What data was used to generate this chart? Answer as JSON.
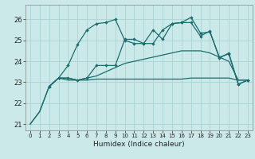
{
  "xlabel": "Humidex (Indice chaleur)",
  "xlim": [
    -0.5,
    23.5
  ],
  "ylim": [
    20.7,
    26.7
  ],
  "yticks": [
    21,
    22,
    23,
    24,
    25,
    26
  ],
  "xticks": [
    0,
    1,
    2,
    3,
    4,
    5,
    6,
    7,
    8,
    9,
    10,
    11,
    12,
    13,
    14,
    15,
    16,
    17,
    18,
    19,
    20,
    21,
    22,
    23
  ],
  "bg_color": "#cce9e9",
  "grid_color": "#aad4d4",
  "line_color": "#1a6e6e",
  "line1": {
    "x": [
      0,
      1,
      2,
      3,
      4,
      5,
      6,
      7,
      8,
      9,
      10,
      11,
      12,
      13,
      14,
      15,
      16,
      17,
      18,
      19,
      20,
      21,
      22,
      23
    ],
    "y": [
      21.0,
      21.6,
      22.8,
      23.2,
      23.2,
      23.1,
      23.1,
      23.15,
      23.15,
      23.15,
      23.15,
      23.15,
      23.15,
      23.15,
      23.15,
      23.15,
      23.15,
      23.2,
      23.2,
      23.2,
      23.2,
      23.2,
      23.1,
      23.1
    ]
  },
  "line2": {
    "x": [
      0,
      1,
      2,
      3,
      4,
      5,
      6,
      7,
      8,
      9,
      10,
      11,
      12,
      13,
      14,
      15,
      16,
      17,
      18,
      19,
      20,
      21,
      22,
      23
    ],
    "y": [
      21.0,
      21.6,
      22.8,
      23.2,
      23.1,
      23.1,
      23.2,
      23.3,
      23.5,
      23.7,
      23.9,
      24.0,
      24.1,
      24.2,
      24.3,
      24.4,
      24.5,
      24.5,
      24.5,
      24.4,
      24.2,
      24.0,
      23.1,
      23.1
    ]
  },
  "line3": {
    "x": [
      2,
      3,
      4,
      5,
      6,
      7,
      8,
      9,
      10,
      11,
      12,
      13,
      14,
      15,
      16,
      17,
      18,
      19,
      20,
      21,
      22,
      23
    ],
    "y": [
      22.8,
      23.2,
      23.8,
      24.8,
      25.5,
      25.8,
      25.85,
      26.0,
      25.0,
      24.85,
      24.85,
      25.5,
      25.05,
      25.8,
      25.85,
      26.1,
      25.35,
      25.4,
      24.2,
      24.35,
      22.9,
      23.1
    ]
  },
  "line4": {
    "x": [
      2,
      3,
      4,
      5,
      6,
      7,
      8,
      9,
      10,
      11,
      12,
      13,
      14,
      15,
      16,
      17,
      18,
      19,
      20,
      21,
      22,
      23
    ],
    "y": [
      22.8,
      23.2,
      23.2,
      23.1,
      23.2,
      23.8,
      23.8,
      23.8,
      25.05,
      25.05,
      24.85,
      24.85,
      25.5,
      25.8,
      25.85,
      25.85,
      25.2,
      25.45,
      24.15,
      24.4,
      22.9,
      23.1
    ]
  }
}
